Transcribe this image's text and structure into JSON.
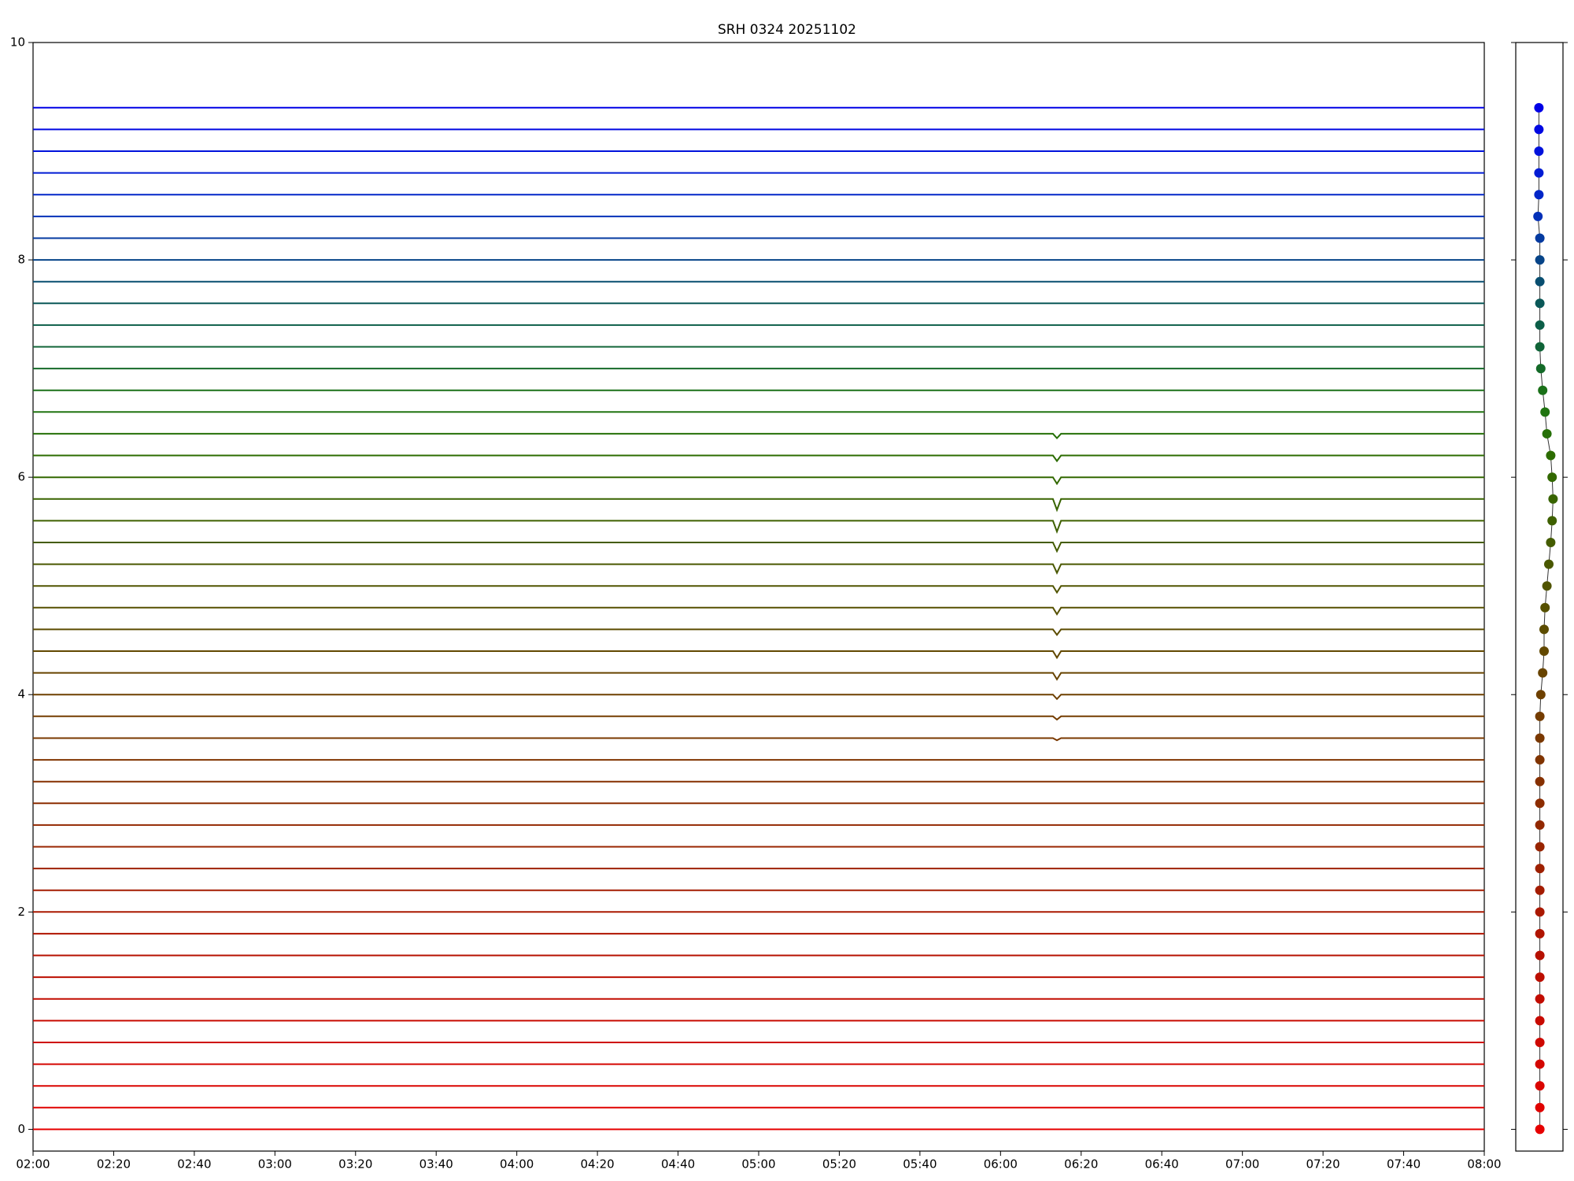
{
  "chart_data": [
    {
      "type": "line",
      "title": "SRH 0324 20251102",
      "x": [
        "02:00",
        "02:30",
        "03:00",
        "03:30",
        "04:00",
        "04:30",
        "05:00",
        "05:30",
        "06:00",
        "06:13",
        "06:14",
        "06:15",
        "06:30",
        "07:00",
        "07:30",
        "08:00"
      ],
      "xlim": [
        "02:00",
        "08:00"
      ],
      "xticks": [
        "02:00",
        "02:20",
        "02:40",
        "03:00",
        "03:20",
        "03:40",
        "04:00",
        "04:20",
        "04:40",
        "05:00",
        "05:20",
        "05:40",
        "06:00",
        "06:20",
        "06:40",
        "07:00",
        "07:20",
        "07:40",
        "08:00"
      ],
      "ylim": [
        -0.2,
        10
      ],
      "yticks": [
        0,
        2,
        4,
        6,
        8,
        10
      ],
      "series": [
        {
          "color": "#e60000",
          "values": [
            0,
            0,
            0,
            0,
            0,
            0,
            0,
            0,
            0,
            0,
            0,
            0,
            0,
            0,
            0,
            0
          ]
        },
        {
          "color": "#e00200",
          "values": [
            0.2,
            0.2,
            0.2,
            0.2,
            0.2,
            0.2,
            0.2,
            0.2,
            0.2,
            0.2,
            0.2,
            0.2,
            0.2,
            0.2,
            0.2,
            0.2
          ]
        },
        {
          "color": "#da0400",
          "values": [
            0.4,
            0.4,
            0.4,
            0.4,
            0.4,
            0.4,
            0.4,
            0.4,
            0.4,
            0.4,
            0.4,
            0.4,
            0.4,
            0.4,
            0.4,
            0.4
          ]
        },
        {
          "color": "#d40600",
          "values": [
            0.6,
            0.6,
            0.6,
            0.6,
            0.6,
            0.6,
            0.6,
            0.6,
            0.6,
            0.6,
            0.6,
            0.6,
            0.6,
            0.6,
            0.6,
            0.6
          ]
        },
        {
          "color": "#ce0800",
          "values": [
            0.8,
            0.8,
            0.8,
            0.8,
            0.8,
            0.8,
            0.8,
            0.8,
            0.8,
            0.8,
            0.8,
            0.8,
            0.8,
            0.8,
            0.8,
            0.8
          ]
        },
        {
          "color": "#c80a00",
          "values": [
            1,
            1,
            1,
            1,
            1,
            1,
            1,
            1,
            1,
            1,
            1,
            1,
            1,
            1,
            1,
            1
          ]
        },
        {
          "color": "#c20c00",
          "values": [
            1.2,
            1.2,
            1.2,
            1.2,
            1.2,
            1.2,
            1.2,
            1.2,
            1.2,
            1.2,
            1.2,
            1.2,
            1.2,
            1.2,
            1.2,
            1.2
          ]
        },
        {
          "color": "#bc0e00",
          "values": [
            1.4,
            1.4,
            1.4,
            1.4,
            1.4,
            1.4,
            1.4,
            1.4,
            1.4,
            1.4,
            1.4,
            1.4,
            1.4,
            1.4,
            1.4,
            1.4
          ]
        },
        {
          "color": "#b61000",
          "values": [
            1.6,
            1.6,
            1.6,
            1.6,
            1.6,
            1.6,
            1.6,
            1.6,
            1.6,
            1.6,
            1.6,
            1.6,
            1.6,
            1.6,
            1.6,
            1.6
          ]
        },
        {
          "color": "#b01400",
          "values": [
            1.8,
            1.8,
            1.8,
            1.8,
            1.8,
            1.8,
            1.8,
            1.8,
            1.8,
            1.8,
            1.8,
            1.8,
            1.8,
            1.8,
            1.8,
            1.8
          ]
        },
        {
          "color": "#aa1800",
          "values": [
            2,
            2,
            2,
            2,
            2,
            2,
            2,
            2,
            2,
            2,
            2,
            2,
            2,
            2,
            2,
            2
          ]
        },
        {
          "color": "#a41c00",
          "values": [
            2.2,
            2.2,
            2.2,
            2.2,
            2.2,
            2.2,
            2.2,
            2.2,
            2.2,
            2.2,
            2.2,
            2.2,
            2.2,
            2.2,
            2.2,
            2.2
          ]
        },
        {
          "color": "#9e2000",
          "values": [
            2.4,
            2.4,
            2.4,
            2.4,
            2.4,
            2.4,
            2.4,
            2.4,
            2.4,
            2.4,
            2.4,
            2.4,
            2.4,
            2.4,
            2.4,
            2.4
          ]
        },
        {
          "color": "#982400",
          "values": [
            2.6,
            2.6,
            2.6,
            2.6,
            2.6,
            2.6,
            2.6,
            2.6,
            2.6,
            2.6,
            2.6,
            2.6,
            2.6,
            2.6,
            2.6,
            2.6
          ]
        },
        {
          "color": "#922800",
          "values": [
            2.8,
            2.8,
            2.8,
            2.8,
            2.8,
            2.8,
            2.8,
            2.8,
            2.8,
            2.8,
            2.8,
            2.8,
            2.8,
            2.8,
            2.8,
            2.8
          ]
        },
        {
          "color": "#8c2c00",
          "values": [
            3,
            3,
            3,
            3,
            3,
            3,
            3,
            3,
            3,
            3,
            3,
            3,
            3,
            3,
            3,
            3
          ]
        },
        {
          "color": "#863000",
          "values": [
            3.2,
            3.2,
            3.2,
            3.2,
            3.2,
            3.2,
            3.2,
            3.2,
            3.2,
            3.2,
            3.2,
            3.2,
            3.2,
            3.2,
            3.2,
            3.2
          ]
        },
        {
          "color": "#803400",
          "values": [
            3.4,
            3.4,
            3.4,
            3.4,
            3.4,
            3.4,
            3.4,
            3.4,
            3.4,
            3.4,
            3.4,
            3.4,
            3.4,
            3.4,
            3.4,
            3.4
          ]
        },
        {
          "color": "#7a3800",
          "values": [
            3.6,
            3.6,
            3.6,
            3.6,
            3.6,
            3.6,
            3.6,
            3.6,
            3.6,
            3.6,
            3.58,
            3.6,
            3.6,
            3.6,
            3.6,
            3.6
          ]
        },
        {
          "color": "#743c00",
          "values": [
            3.8,
            3.8,
            3.8,
            3.8,
            3.8,
            3.8,
            3.8,
            3.8,
            3.8,
            3.8,
            3.77,
            3.8,
            3.8,
            3.8,
            3.8,
            3.8
          ]
        },
        {
          "color": "#6e4000",
          "values": [
            4,
            4,
            4,
            4,
            4,
            4,
            4,
            4,
            4,
            4,
            3.96,
            4,
            4,
            4,
            4,
            4
          ]
        },
        {
          "color": "#684400",
          "values": [
            4.2,
            4.2,
            4.2,
            4.2,
            4.2,
            4.2,
            4.2,
            4.2,
            4.2,
            4.2,
            4.14,
            4.2,
            4.2,
            4.2,
            4.2,
            4.2
          ]
        },
        {
          "color": "#624800",
          "values": [
            4.4,
            4.4,
            4.4,
            4.4,
            4.4,
            4.4,
            4.4,
            4.4,
            4.4,
            4.4,
            4.34,
            4.4,
            4.4,
            4.4,
            4.4,
            4.4
          ]
        },
        {
          "color": "#5c4c00",
          "values": [
            4.6,
            4.6,
            4.6,
            4.6,
            4.6,
            4.6,
            4.6,
            4.6,
            4.6,
            4.6,
            4.55,
            4.6,
            4.6,
            4.6,
            4.6,
            4.6
          ]
        },
        {
          "color": "#565000",
          "values": [
            4.8,
            4.8,
            4.8,
            4.8,
            4.8,
            4.8,
            4.8,
            4.8,
            4.8,
            4.8,
            4.74,
            4.8,
            4.8,
            4.8,
            4.8,
            4.8
          ]
        },
        {
          "color": "#505400",
          "values": [
            5,
            5,
            5,
            5,
            5,
            5,
            5,
            5,
            5,
            5,
            4.94,
            5,
            5,
            5,
            5,
            5
          ]
        },
        {
          "color": "#4a5800",
          "values": [
            5.2,
            5.2,
            5.2,
            5.2,
            5.2,
            5.2,
            5.2,
            5.2,
            5.2,
            5.2,
            5.12,
            5.2,
            5.2,
            5.2,
            5.2,
            5.2
          ]
        },
        {
          "color": "#445c00",
          "values": [
            5.4,
            5.4,
            5.4,
            5.4,
            5.4,
            5.4,
            5.4,
            5.4,
            5.4,
            5.4,
            5.32,
            5.4,
            5.4,
            5.4,
            5.4,
            5.4
          ]
        },
        {
          "color": "#3e6000",
          "values": [
            5.6,
            5.6,
            5.6,
            5.6,
            5.6,
            5.6,
            5.6,
            5.6,
            5.6,
            5.6,
            5.5,
            5.6,
            5.6,
            5.6,
            5.6,
            5.6
          ]
        },
        {
          "color": "#386400",
          "values": [
            5.8,
            5.8,
            5.8,
            5.8,
            5.8,
            5.8,
            5.8,
            5.8,
            5.8,
            5.8,
            5.7,
            5.8,
            5.8,
            5.8,
            5.8,
            5.8
          ]
        },
        {
          "color": "#326800",
          "values": [
            6,
            6,
            6,
            6,
            6,
            6,
            6,
            6,
            6,
            6,
            5.94,
            6,
            6,
            6,
            6,
            6
          ]
        },
        {
          "color": "#2c6c00",
          "values": [
            6.2,
            6.2,
            6.2,
            6.2,
            6.2,
            6.2,
            6.2,
            6.2,
            6.2,
            6.2,
            6.15,
            6.2,
            6.2,
            6.2,
            6.2,
            6.2
          ]
        },
        {
          "color": "#267008",
          "values": [
            6.4,
            6.4,
            6.4,
            6.4,
            6.4,
            6.4,
            6.4,
            6.4,
            6.4,
            6.4,
            6.36,
            6.4,
            6.4,
            6.4,
            6.4,
            6.4
          ]
        },
        {
          "color": "#207410",
          "values": [
            6.6,
            6.6,
            6.6,
            6.6,
            6.6,
            6.6,
            6.6,
            6.6,
            6.6,
            6.6,
            6.6,
            6.6,
            6.6,
            6.6,
            6.6,
            6.6
          ]
        },
        {
          "color": "#1a7018",
          "values": [
            6.8,
            6.8,
            6.8,
            6.8,
            6.8,
            6.8,
            6.8,
            6.8,
            6.8,
            6.8,
            6.8,
            6.8,
            6.8,
            6.8,
            6.8,
            6.8
          ]
        },
        {
          "color": "#146a28",
          "values": [
            7,
            7,
            7,
            7,
            7,
            7,
            7,
            7,
            7,
            7,
            7,
            7,
            7,
            7,
            7,
            7
          ]
        },
        {
          "color": "#106438",
          "values": [
            7.2,
            7.2,
            7.2,
            7.2,
            7.2,
            7.2,
            7.2,
            7.2,
            7.2,
            7.2,
            7.2,
            7.2,
            7.2,
            7.2,
            7.2,
            7.2
          ]
        },
        {
          "color": "#0c5e48",
          "values": [
            7.4,
            7.4,
            7.4,
            7.4,
            7.4,
            7.4,
            7.4,
            7.4,
            7.4,
            7.4,
            7.4,
            7.4,
            7.4,
            7.4,
            7.4,
            7.4
          ]
        },
        {
          "color": "#0a5858",
          "values": [
            7.6,
            7.6,
            7.6,
            7.6,
            7.6,
            7.6,
            7.6,
            7.6,
            7.6,
            7.6,
            7.6,
            7.6,
            7.6,
            7.6,
            7.6,
            7.6
          ]
        },
        {
          "color": "#084e70",
          "values": [
            7.8,
            7.8,
            7.8,
            7.8,
            7.8,
            7.8,
            7.8,
            7.8,
            7.8,
            7.8,
            7.8,
            7.8,
            7.8,
            7.8,
            7.8,
            7.8
          ]
        },
        {
          "color": "#064488",
          "values": [
            8,
            8,
            8,
            8,
            8,
            8,
            8,
            8,
            8,
            8,
            8,
            8,
            8,
            8,
            8,
            8
          ]
        },
        {
          "color": "#043aa0",
          "values": [
            8.2,
            8.2,
            8.2,
            8.2,
            8.2,
            8.2,
            8.2,
            8.2,
            8.2,
            8.2,
            8.2,
            8.2,
            8.2,
            8.2,
            8.2,
            8.2
          ]
        },
        {
          "color": "#0330b8",
          "values": [
            8.4,
            8.4,
            8.4,
            8.4,
            8.4,
            8.4,
            8.4,
            8.4,
            8.4,
            8.4,
            8.4,
            8.4,
            8.4,
            8.4,
            8.4,
            8.4
          ]
        },
        {
          "color": "#0226c8",
          "values": [
            8.6,
            8.6,
            8.6,
            8.6,
            8.6,
            8.6,
            8.6,
            8.6,
            8.6,
            8.6,
            8.6,
            8.6,
            8.6,
            8.6,
            8.6,
            8.6
          ]
        },
        {
          "color": "#011cd4",
          "values": [
            8.8,
            8.8,
            8.8,
            8.8,
            8.8,
            8.8,
            8.8,
            8.8,
            8.8,
            8.8,
            8.8,
            8.8,
            8.8,
            8.8,
            8.8,
            8.8
          ]
        },
        {
          "color": "#0012dc",
          "values": [
            9,
            9,
            9,
            9,
            9,
            9,
            9,
            9,
            9,
            9,
            9,
            9,
            9,
            9,
            9,
            9
          ]
        },
        {
          "color": "#0008e2",
          "values": [
            9.2,
            9.2,
            9.2,
            9.2,
            9.2,
            9.2,
            9.2,
            9.2,
            9.2,
            9.2,
            9.2,
            9.2,
            9.2,
            9.2,
            9.2,
            9.2
          ]
        },
        {
          "color": "#0000e6",
          "values": [
            9.4,
            9.4,
            9.4,
            9.4,
            9.4,
            9.4,
            9.4,
            9.4,
            9.4,
            9.4,
            9.4,
            9.4,
            9.4,
            9.4,
            9.4,
            9.4
          ]
        }
      ]
    },
    {
      "type": "scatter",
      "xlim": [
        0,
        1
      ],
      "ylim": [
        -0.2,
        10
      ],
      "yticks": [
        0,
        2,
        4,
        6,
        8,
        10
      ],
      "x": [
        0.51,
        0.51,
        0.51,
        0.51,
        0.51,
        0.51,
        0.51,
        0.51,
        0.51,
        0.51,
        0.51,
        0.51,
        0.51,
        0.51,
        0.51,
        0.51,
        0.51,
        0.51,
        0.51,
        0.51,
        0.53,
        0.57,
        0.6,
        0.6,
        0.62,
        0.66,
        0.7,
        0.74,
        0.77,
        0.79,
        0.77,
        0.74,
        0.66,
        0.62,
        0.57,
        0.53,
        0.51,
        0.51,
        0.51,
        0.51,
        0.51,
        0.51,
        0.47,
        0.49,
        0.49,
        0.49,
        0.49,
        0.49
      ],
      "values": [
        0,
        0.2,
        0.4,
        0.6,
        0.8,
        1,
        1.2,
        1.4,
        1.6,
        1.8,
        2,
        2.2,
        2.4,
        2.6,
        2.8,
        3,
        3.2,
        3.4,
        3.6,
        3.8,
        4,
        4.2,
        4.4,
        4.6,
        4.8,
        5,
        5.2,
        5.4,
        5.6,
        5.8,
        6,
        6.2,
        6.4,
        6.6,
        6.8,
        7,
        7.2,
        7.4,
        7.6,
        7.8,
        8,
        8.2,
        8.4,
        8.6,
        8.8,
        9,
        9.2,
        9.4
      ]
    }
  ]
}
